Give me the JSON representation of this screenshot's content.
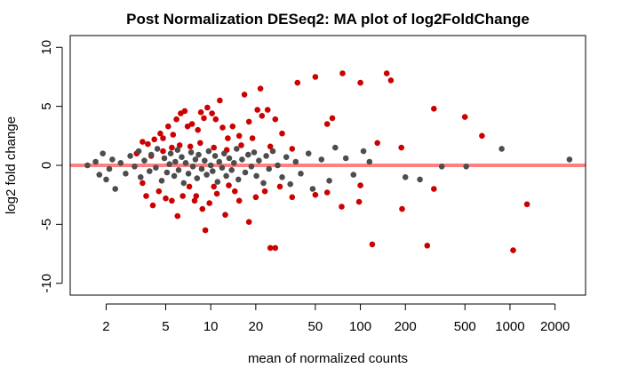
{
  "chart_data": {
    "type": "scatter",
    "title": "Post Normalization DESeq2: MA plot of log2FoldChange",
    "xlabel": "mean of normalized counts",
    "ylabel": "log2 fold change",
    "x_scale": "log10",
    "xlim": [
      1.15,
      3200
    ],
    "ylim": [
      -11,
      11
    ],
    "x_ticks": [
      2,
      5,
      10,
      20,
      50,
      100,
      200,
      500,
      1000,
      2000
    ],
    "x_tick_labels": [
      "2",
      "5",
      "10",
      "20",
      "50",
      "100",
      "200",
      "500",
      "1000",
      "2000"
    ],
    "y_ticks": [
      -10,
      -5,
      0,
      5,
      10
    ],
    "y_tick_labels": [
      "-10",
      "-5",
      "0",
      "5",
      "10"
    ],
    "reference_line": {
      "y": 0,
      "color": "#ff8080"
    },
    "grid": false,
    "legend": "none",
    "series": [
      {
        "color": "#cc0000",
        "points": [
          [
            3.5,
            2.0
          ],
          [
            3.8,
            1.8
          ],
          [
            4.2,
            2.2
          ],
          [
            4.6,
            2.7
          ],
          [
            4.8,
            2.3
          ],
          [
            5.2,
            3.3
          ],
          [
            5.6,
            2.6
          ],
          [
            5.9,
            3.9
          ],
          [
            6.3,
            4.4
          ],
          [
            6.7,
            4.6
          ],
          [
            7.0,
            3.3
          ],
          [
            7.5,
            3.5
          ],
          [
            8.2,
            3.0
          ],
          [
            8.6,
            4.5
          ],
          [
            9.0,
            4.0
          ],
          [
            9.5,
            4.9
          ],
          [
            10.2,
            4.4
          ],
          [
            10.8,
            3.9
          ],
          [
            11.5,
            5.5
          ],
          [
            12.0,
            3.2
          ],
          [
            13.0,
            2.3
          ],
          [
            14.0,
            3.3
          ],
          [
            15.5,
            2.5
          ],
          [
            16.8,
            6.0
          ],
          [
            18.0,
            3.7
          ],
          [
            19.0,
            2.3
          ],
          [
            20.5,
            4.7
          ],
          [
            21.5,
            6.5
          ],
          [
            22.0,
            4.2
          ],
          [
            24.0,
            4.7
          ],
          [
            27.0,
            3.9
          ],
          [
            30.0,
            2.7
          ],
          [
            38.0,
            7.0
          ],
          [
            50.0,
            7.5
          ],
          [
            60.0,
            3.5
          ],
          [
            65.0,
            4.0
          ],
          [
            76.0,
            7.8
          ],
          [
            100.0,
            7.0
          ],
          [
            130.0,
            1.9
          ],
          [
            150.0,
            7.8
          ],
          [
            160.0,
            7.2
          ],
          [
            188.0,
            1.5
          ],
          [
            310.0,
            4.8
          ],
          [
            500.0,
            4.1
          ],
          [
            650.0,
            2.5
          ],
          [
            3.5,
            -1.5
          ],
          [
            3.7,
            -2.6
          ],
          [
            4.1,
            -3.4
          ],
          [
            4.5,
            -2.2
          ],
          [
            5.0,
            -2.8
          ],
          [
            5.5,
            -3.0
          ],
          [
            6.0,
            -4.3
          ],
          [
            6.5,
            -2.6
          ],
          [
            7.2,
            -1.8
          ],
          [
            7.8,
            -3.0
          ],
          [
            8.0,
            -2.6
          ],
          [
            8.8,
            -3.7
          ],
          [
            9.2,
            -5.5
          ],
          [
            9.8,
            -3.2
          ],
          [
            10.5,
            -1.8
          ],
          [
            11.0,
            -2.4
          ],
          [
            12.5,
            -4.2
          ],
          [
            13.2,
            -1.7
          ],
          [
            14.5,
            -2.2
          ],
          [
            15.5,
            -3.0
          ],
          [
            18.0,
            -4.8
          ],
          [
            20.0,
            -2.7
          ],
          [
            23.0,
            -2.2
          ],
          [
            25.0,
            -7.0
          ],
          [
            27.0,
            -7.0
          ],
          [
            29.0,
            -1.8
          ],
          [
            35.0,
            -2.7
          ],
          [
            50.0,
            -2.5
          ],
          [
            60.0,
            -2.3
          ],
          [
            75.0,
            -3.5
          ],
          [
            98.0,
            -3.1
          ],
          [
            100.0,
            -1.7
          ],
          [
            120.0,
            -6.7
          ],
          [
            190.0,
            -3.7
          ],
          [
            280.0,
            -6.8
          ],
          [
            310.0,
            -2.0
          ],
          [
            1050.0,
            -7.2
          ],
          [
            1300.0,
            -3.3
          ],
          [
            3.2,
            1.0
          ],
          [
            4.0,
            0.8
          ],
          [
            4.8,
            1.2
          ],
          [
            5.5,
            1.5
          ],
          [
            6.2,
            1.7
          ],
          [
            7.3,
            1.6
          ],
          [
            8.5,
            1.9
          ],
          [
            10.5,
            1.5
          ],
          [
            12.8,
            1.3
          ],
          [
            16.0,
            1.7
          ],
          [
            25.0,
            1.6
          ],
          [
            35.0,
            1.4
          ]
        ]
      },
      {
        "color": "#4d4d4d",
        "points": [
          [
            1.5,
            0.0
          ],
          [
            1.7,
            0.3
          ],
          [
            1.8,
            -0.8
          ],
          [
            1.9,
            1.0
          ],
          [
            2.0,
            -1.2
          ],
          [
            2.1,
            -0.3
          ],
          [
            2.2,
            0.5
          ],
          [
            2.3,
            -2.0
          ],
          [
            2.5,
            0.2
          ],
          [
            2.7,
            -0.7
          ],
          [
            2.9,
            0.8
          ],
          [
            3.1,
            -0.1
          ],
          [
            3.3,
            1.2
          ],
          [
            3.4,
            -1.0
          ],
          [
            3.6,
            0.4
          ],
          [
            3.9,
            -0.5
          ],
          [
            4.0,
            0.9
          ],
          [
            4.3,
            -0.2
          ],
          [
            4.4,
            1.4
          ],
          [
            4.7,
            -1.3
          ],
          [
            4.9,
            0.6
          ],
          [
            5.1,
            -0.6
          ],
          [
            5.3,
            0.1
          ],
          [
            5.4,
            1.0
          ],
          [
            5.7,
            -0.9
          ],
          [
            5.8,
            0.3
          ],
          [
            6.0,
            1.3
          ],
          [
            6.1,
            -0.4
          ],
          [
            6.4,
            0.7
          ],
          [
            6.6,
            -1.5
          ],
          [
            6.8,
            0.2
          ],
          [
            7.1,
            -0.7
          ],
          [
            7.4,
            1.1
          ],
          [
            7.6,
            -0.1
          ],
          [
            7.9,
            0.5
          ],
          [
            8.1,
            -1.1
          ],
          [
            8.3,
            0.9
          ],
          [
            8.7,
            -0.3
          ],
          [
            9.1,
            0.4
          ],
          [
            9.4,
            -0.8
          ],
          [
            9.7,
            1.2
          ],
          [
            10.0,
            0.0
          ],
          [
            10.3,
            -0.5
          ],
          [
            10.7,
            0.8
          ],
          [
            11.1,
            -1.4
          ],
          [
            11.4,
            0.3
          ],
          [
            11.9,
            -0.2
          ],
          [
            12.3,
            1.0
          ],
          [
            12.7,
            -0.9
          ],
          [
            13.3,
            0.6
          ],
          [
            13.8,
            -0.4
          ],
          [
            14.3,
            0.2
          ],
          [
            14.9,
            1.4
          ],
          [
            15.3,
            -1.2
          ],
          [
            16.2,
            0.5
          ],
          [
            17.0,
            -0.6
          ],
          [
            17.8,
            0.9
          ],
          [
            18.7,
            -0.1
          ],
          [
            19.5,
            1.1
          ],
          [
            20.2,
            -0.9
          ],
          [
            21.0,
            0.4
          ],
          [
            22.5,
            -1.5
          ],
          [
            23.5,
            0.8
          ],
          [
            24.5,
            -0.3
          ],
          [
            26.0,
            1.2
          ],
          [
            28.0,
            0.0
          ],
          [
            30.0,
            -1.0
          ],
          [
            32.0,
            0.7
          ],
          [
            34.0,
            -1.6
          ],
          [
            37.0,
            0.3
          ],
          [
            40.0,
            -0.7
          ],
          [
            45.0,
            1.0
          ],
          [
            48.0,
            -2.0
          ],
          [
            55.0,
            0.5
          ],
          [
            62.0,
            -1.3
          ],
          [
            68.0,
            1.5
          ],
          [
            80.0,
            0.6
          ],
          [
            90.0,
            -0.8
          ],
          [
            105.0,
            1.2
          ],
          [
            115.0,
            0.3
          ],
          [
            200.0,
            -1.0
          ],
          [
            250.0,
            -1.2
          ],
          [
            350.0,
            -0.1
          ],
          [
            510.0,
            -0.1
          ],
          [
            880.0,
            1.4
          ],
          [
            2500.0,
            0.5
          ]
        ]
      }
    ]
  }
}
